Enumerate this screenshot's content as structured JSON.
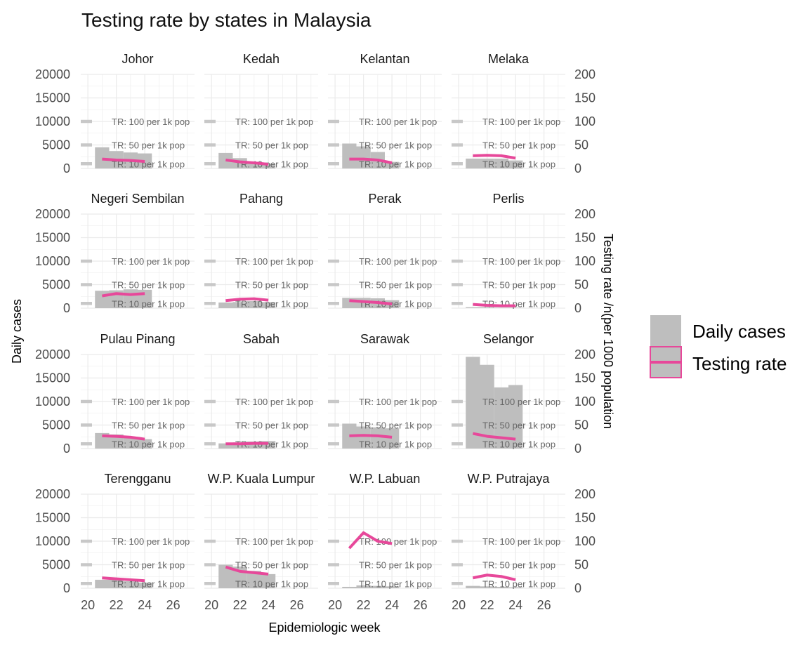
{
  "chart_data": {
    "type": "bar",
    "title": "Testing rate by states in Malaysia",
    "xlabel": "Epidemiologic week",
    "ylabel": "Daily cases",
    "y2label": "Testing rate /n(per 1000 population",
    "xlim": [
      19.5,
      27.5
    ],
    "ylim": [
      0,
      20000
    ],
    "y2lim": [
      0,
      200
    ],
    "x_ticks": [
      "20",
      "22",
      "24",
      "26"
    ],
    "y_ticks": [
      "0",
      "5000",
      "10000",
      "15000",
      "20000"
    ],
    "y2_ticks": [
      "0",
      "50",
      "100",
      "150",
      "200"
    ],
    "grid": true,
    "legend_position": "right",
    "legend": [
      {
        "label": "Daily cases",
        "color": "#bebebe",
        "kind": "box"
      },
      {
        "label": "Testing rate",
        "color": "#e7489a",
        "kind": "line"
      }
    ],
    "reference_lines": [
      {
        "value": 10,
        "label": "TR: 10 per 1k pop"
      },
      {
        "value": 50,
        "label": "TR: 50 per 1k pop"
      },
      {
        "value": 100,
        "label": "TR: 100 per 1k pop"
      }
    ],
    "weeks": [
      21,
      22,
      23,
      24
    ],
    "panels": [
      {
        "name": "Johor",
        "daily_cases": [
          4500,
          3700,
          3400,
          3200
        ],
        "testing_rate": [
          20,
          18,
          17,
          15
        ]
      },
      {
        "name": "Kedah",
        "daily_cases": [
          3300,
          2200,
          1300,
          1000
        ],
        "testing_rate": [
          18,
          14,
          12,
          9
        ]
      },
      {
        "name": "Kelantan",
        "daily_cases": [
          5300,
          4700,
          3500,
          1400
        ],
        "testing_rate": [
          20,
          20,
          18,
          12
        ]
      },
      {
        "name": "Melaka",
        "daily_cases": [
          2100,
          2100,
          2100,
          1700
        ],
        "testing_rate": [
          27,
          28,
          27,
          22
        ]
      },
      {
        "name": "Negeri Sembilan",
        "daily_cases": [
          3700,
          3800,
          4000,
          3900
        ],
        "testing_rate": [
          26,
          31,
          29,
          31
        ]
      },
      {
        "name": "Pahang",
        "daily_cases": [
          1200,
          1300,
          1500,
          1300
        ],
        "testing_rate": [
          16,
          19,
          20,
          17
        ]
      },
      {
        "name": "Perak",
        "daily_cases": [
          2200,
          2200,
          2100,
          1700
        ],
        "testing_rate": [
          16,
          14,
          12,
          9
        ]
      },
      {
        "name": "Perlis",
        "daily_cases": [
          200,
          200,
          100,
          100
        ],
        "testing_rate": [
          8,
          6,
          5,
          5
        ]
      },
      {
        "name": "Pulau Pinang",
        "daily_cases": [
          3300,
          3000,
          2500,
          2000
        ],
        "testing_rate": [
          27,
          26,
          24,
          20
        ]
      },
      {
        "name": "Sabah",
        "daily_cases": [
          1100,
          1300,
          1500,
          1600
        ],
        "testing_rate": [
          10,
          10,
          11,
          11
        ]
      },
      {
        "name": "Sarawak",
        "daily_cases": [
          5300,
          4700,
          4500,
          4300
        ],
        "testing_rate": [
          27,
          28,
          27,
          24
        ]
      },
      {
        "name": "Selangor",
        "daily_cases": [
          19500,
          17800,
          13000,
          13500
        ],
        "testing_rate": [
          32,
          26,
          23,
          20
        ]
      },
      {
        "name": "Terengganu",
        "daily_cases": [
          1800,
          1900,
          1500,
          1200
        ],
        "testing_rate": [
          22,
          20,
          18,
          16
        ]
      },
      {
        "name": "W.P. Kuala Lumpur",
        "daily_cases": [
          5000,
          4600,
          3700,
          3000
        ],
        "testing_rate": [
          45,
          36,
          33,
          30
        ]
      },
      {
        "name": "W.P. Labuan",
        "daily_cases": [
          300,
          600,
          500,
          400
        ],
        "testing_rate": [
          85,
          118,
          100,
          95
        ]
      },
      {
        "name": "W.P. Putrajaya",
        "daily_cases": [
          500,
          400,
          300,
          200
        ],
        "testing_rate": [
          22,
          28,
          25,
          18
        ]
      }
    ]
  }
}
